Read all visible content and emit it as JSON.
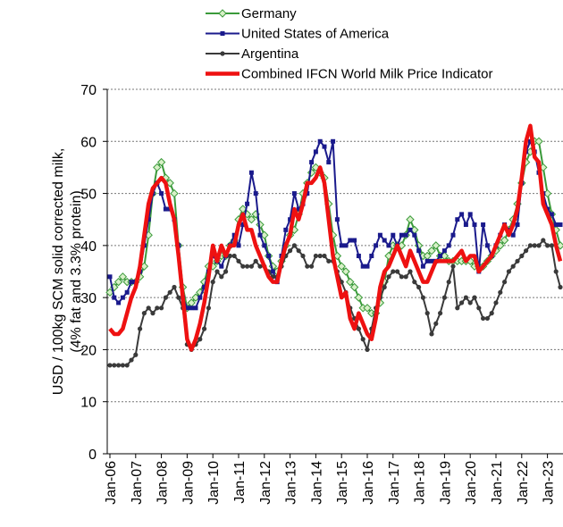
{
  "chart_data": {
    "type": "line",
    "categories": [
      "Jan-06",
      null,
      null,
      null,
      null,
      null,
      "Jan-07",
      null,
      null,
      null,
      null,
      null,
      "Jan-08",
      null,
      null,
      null,
      null,
      null,
      "Jan-09",
      null,
      null,
      null,
      null,
      null,
      "Jan-10",
      null,
      null,
      null,
      null,
      null,
      "Jan-11",
      null,
      null,
      null,
      null,
      null,
      "Jan-12",
      null,
      null,
      null,
      null,
      null,
      "Jan-13",
      null,
      null,
      null,
      null,
      null,
      "Jan-14",
      null,
      null,
      null,
      null,
      null,
      "Jan-15",
      null,
      null,
      null,
      null,
      null,
      "Jan-16",
      null,
      null,
      null,
      null,
      null,
      "Jan-17",
      null,
      null,
      null,
      null,
      null,
      "Jan-18",
      null,
      null,
      null,
      null,
      null,
      "Jan-19",
      null,
      null,
      null,
      null,
      null,
      "Jan-20",
      null,
      null,
      null,
      null,
      null,
      "Jan-21",
      null,
      null,
      null,
      null,
      null,
      "Jan-22",
      null,
      null,
      null,
      null,
      null,
      "Jan-23",
      null,
      null,
      null
    ],
    "y_label": [
      "USD / 100kg SCM solid corrected milk,",
      "(4% fat and 3.3% protein)"
    ],
    "ylim": [
      0,
      70
    ],
    "yticks": [
      0,
      10,
      20,
      30,
      40,
      50,
      60,
      70
    ],
    "grid": true,
    "legend_position": "top",
    "series": [
      {
        "name": "Germany",
        "color": "#3a9a3a",
        "marker": "diamond",
        "values": [
          31,
          32,
          33,
          34,
          33,
          33,
          33,
          34,
          36,
          42,
          50,
          55,
          56,
          53,
          52,
          50,
          40,
          32,
          28,
          29,
          30,
          31,
          33,
          36,
          36,
          37,
          38,
          38,
          40,
          41,
          45,
          47,
          46,
          45,
          46,
          44,
          42,
          38,
          36,
          35,
          37,
          40,
          42,
          43,
          46,
          50,
          52,
          54,
          55,
          54,
          53,
          48,
          42,
          38,
          36,
          35,
          33,
          32,
          30,
          28,
          28,
          27,
          27,
          29,
          33,
          38,
          40,
          40,
          40,
          42,
          45,
          43,
          40,
          38,
          38,
          39,
          40,
          38,
          38,
          37,
          37,
          37,
          37,
          37,
          37,
          36,
          36,
          36,
          37,
          38,
          39,
          40,
          41,
          43,
          45,
          48,
          52,
          56,
          58,
          60,
          60,
          55,
          50,
          46,
          43,
          40
        ]
      },
      {
        "name": "United States of America",
        "color": "#1a1a8c",
        "marker": "square",
        "values": [
          34,
          30,
          29,
          30,
          31,
          33,
          33,
          35,
          40,
          45,
          50,
          52,
          50,
          47,
          47,
          45,
          40,
          30,
          28,
          28,
          28,
          30,
          32,
          35,
          38,
          37,
          36,
          38,
          40,
          42,
          40,
          44,
          48,
          54,
          50,
          42,
          40,
          38,
          35,
          33,
          38,
          43,
          45,
          50,
          47,
          48,
          50,
          56,
          58,
          60,
          59,
          56,
          60,
          45,
          40,
          40,
          41,
          41,
          38,
          36,
          36,
          38,
          40,
          42,
          41,
          40,
          42,
          40,
          42,
          42,
          43,
          42,
          39,
          36,
          37,
          37,
          37,
          38,
          39,
          40,
          42,
          45,
          46,
          44,
          46,
          44,
          35,
          44,
          40,
          38,
          40,
          42,
          44,
          43,
          42,
          44,
          52,
          58,
          60,
          58,
          54,
          50,
          47,
          46,
          44,
          44
        ]
      },
      {
        "name": "Argentina",
        "color": "#3a3a3a",
        "marker": "circle",
        "values": [
          17,
          17,
          17,
          17,
          17,
          18,
          19,
          24,
          27,
          28,
          27,
          28,
          28,
          30,
          31,
          32,
          30,
          28,
          21,
          20,
          21,
          22,
          24,
          28,
          33,
          35,
          34,
          35,
          38,
          38,
          37,
          36,
          36,
          36,
          37,
          36,
          36,
          35,
          34,
          34,
          36,
          38,
          39,
          40,
          39,
          38,
          36,
          36,
          38,
          38,
          38,
          37,
          37,
          35,
          33,
          31,
          28,
          26,
          24,
          22,
          20,
          24,
          28,
          30,
          32,
          34,
          35,
          35,
          34,
          34,
          35,
          33,
          32,
          30,
          27,
          23,
          25,
          27,
          30,
          33,
          36,
          28,
          29,
          30,
          29,
          30,
          28,
          26,
          26,
          27,
          29,
          31,
          33,
          35,
          36,
          37,
          38,
          39,
          40,
          40,
          40,
          41,
          40,
          40,
          35,
          32
        ]
      },
      {
        "name": "Combined IFCN World Milk Price Indicator",
        "color": "#ee1111",
        "marker": "none",
        "values": [
          24,
          23,
          23,
          24,
          27,
          30,
          32,
          36,
          42,
          48,
          51,
          52,
          53,
          52,
          48,
          45,
          38,
          30,
          22,
          20,
          22,
          25,
          29,
          34,
          40,
          37,
          40,
          38,
          40,
          40,
          44,
          46,
          43,
          43,
          40,
          38,
          36,
          34,
          33,
          33,
          37,
          40,
          42,
          47,
          45,
          48,
          52,
          52,
          53,
          55,
          52,
          45,
          38,
          34,
          30,
          31,
          26,
          24,
          27,
          25,
          23,
          22,
          26,
          32,
          35,
          36,
          38,
          40,
          38,
          36,
          39,
          37,
          35,
          33,
          33,
          35,
          37,
          37,
          37,
          37,
          37,
          38,
          39,
          37,
          38,
          38,
          35,
          36,
          37,
          38,
          40,
          42,
          44,
          42,
          44,
          47,
          53,
          60,
          63,
          57,
          56,
          48,
          46,
          44,
          40,
          37
        ]
      }
    ]
  }
}
